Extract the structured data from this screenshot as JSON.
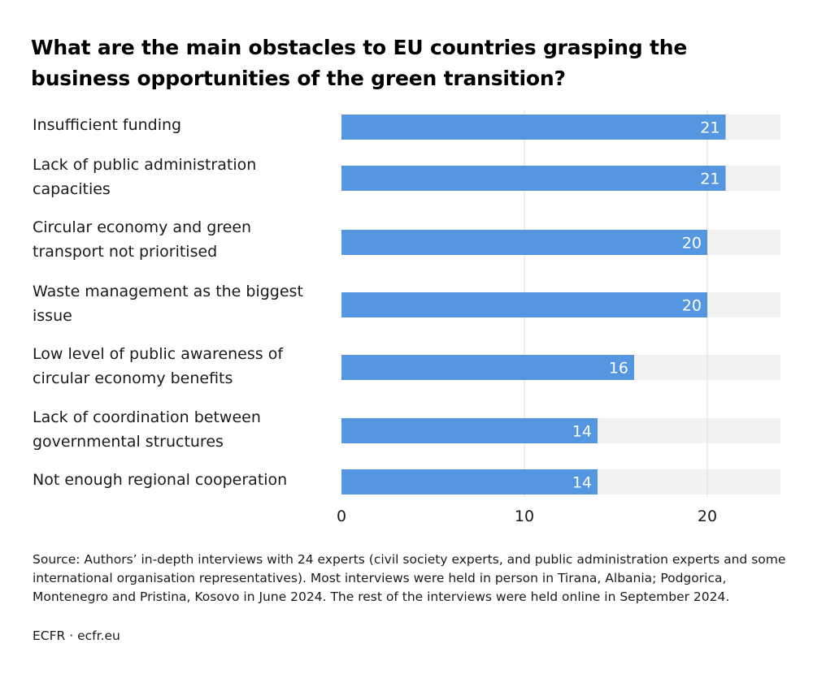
{
  "title": "What are the main obstacles to EU countries grasping the business opportunities of the green transition?",
  "colors": {
    "bar": "#5596e0",
    "track": "#f2f2f2",
    "grid": "#dddddd",
    "value_label": "#ffffff"
  },
  "chart_data": {
    "type": "bar",
    "orientation": "horizontal",
    "categories": [
      "Insufficient funding",
      "Lack of public administration capacities",
      "Circular economy and green transport not prioritised",
      "Waste management as the biggest issue",
      "Low level of public awareness of circular economy benefits",
      "Lack of coordination between governmental structures",
      "Not enough regional cooperation"
    ],
    "values": [
      21,
      21,
      20,
      20,
      16,
      14,
      14
    ],
    "xlim": [
      0,
      24
    ],
    "xticks": [
      "0",
      "10",
      "20"
    ],
    "grid": true,
    "title": "What are the main obstacles to EU countries grasping the business opportunities of the green transition?"
  },
  "footer": {
    "source": "Source: Authors’ in-depth interviews with 24 experts (civil society experts, and public administration experts and some international organisation representatives). Most interviews were held in person in Tirana, Albania; Podgorica, Montenegro and Pristina, Kosovo in June 2024. The rest of the interviews were held online in September 2024.",
    "credit": "ECFR · ecfr.eu"
  }
}
